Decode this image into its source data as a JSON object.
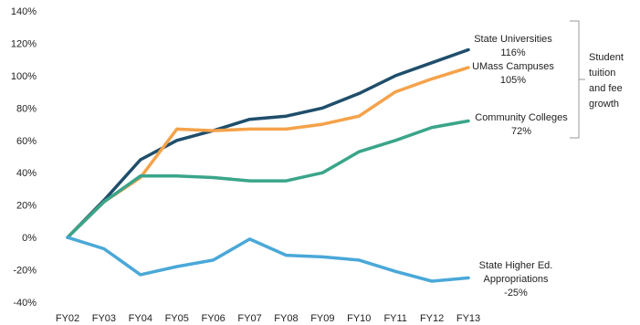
{
  "chart_data": {
    "type": "line",
    "categories": [
      "FY02",
      "FY03",
      "FY04",
      "FY05",
      "FY06",
      "FY07",
      "FY08",
      "FY09",
      "FY10",
      "FY11",
      "FY12",
      "FY13"
    ],
    "ylim": [
      -40,
      140
    ],
    "yticks": [
      "-40%",
      "-20%",
      "0%",
      "20%",
      "40%",
      "60%",
      "80%",
      "100%",
      "120%",
      "140%"
    ],
    "grid": false,
    "series": [
      {
        "name": "State Universities",
        "end_label": "116%",
        "color": "#1f4e6b",
        "values": [
          0,
          23,
          48,
          60,
          66,
          73,
          75,
          80,
          89,
          100,
          108,
          116
        ]
      },
      {
        "name": "UMass Campuses",
        "end_label": "105%",
        "color": "#f5a24a",
        "values": [
          0,
          22,
          37,
          67,
          66,
          67,
          67,
          70,
          75,
          90,
          98,
          105
        ]
      },
      {
        "name": "Community Colleges",
        "end_label": "72%",
        "color": "#3aa58a",
        "values": [
          0,
          22,
          38,
          38,
          37,
          35,
          35,
          40,
          53,
          60,
          68,
          72
        ]
      },
      {
        "name": "State Higher Ed. Appropriations",
        "name_lines": [
          "State Higher Ed.",
          "Appropriations"
        ],
        "end_label": "-25%",
        "color": "#4aa8d8",
        "values": [
          0,
          -7,
          -23,
          -18,
          -14,
          -1,
          -11,
          -12,
          -14,
          -21,
          -27,
          -25
        ]
      }
    ],
    "bracket_label": [
      "Student",
      "tuition",
      "and fee",
      "growth"
    ]
  }
}
